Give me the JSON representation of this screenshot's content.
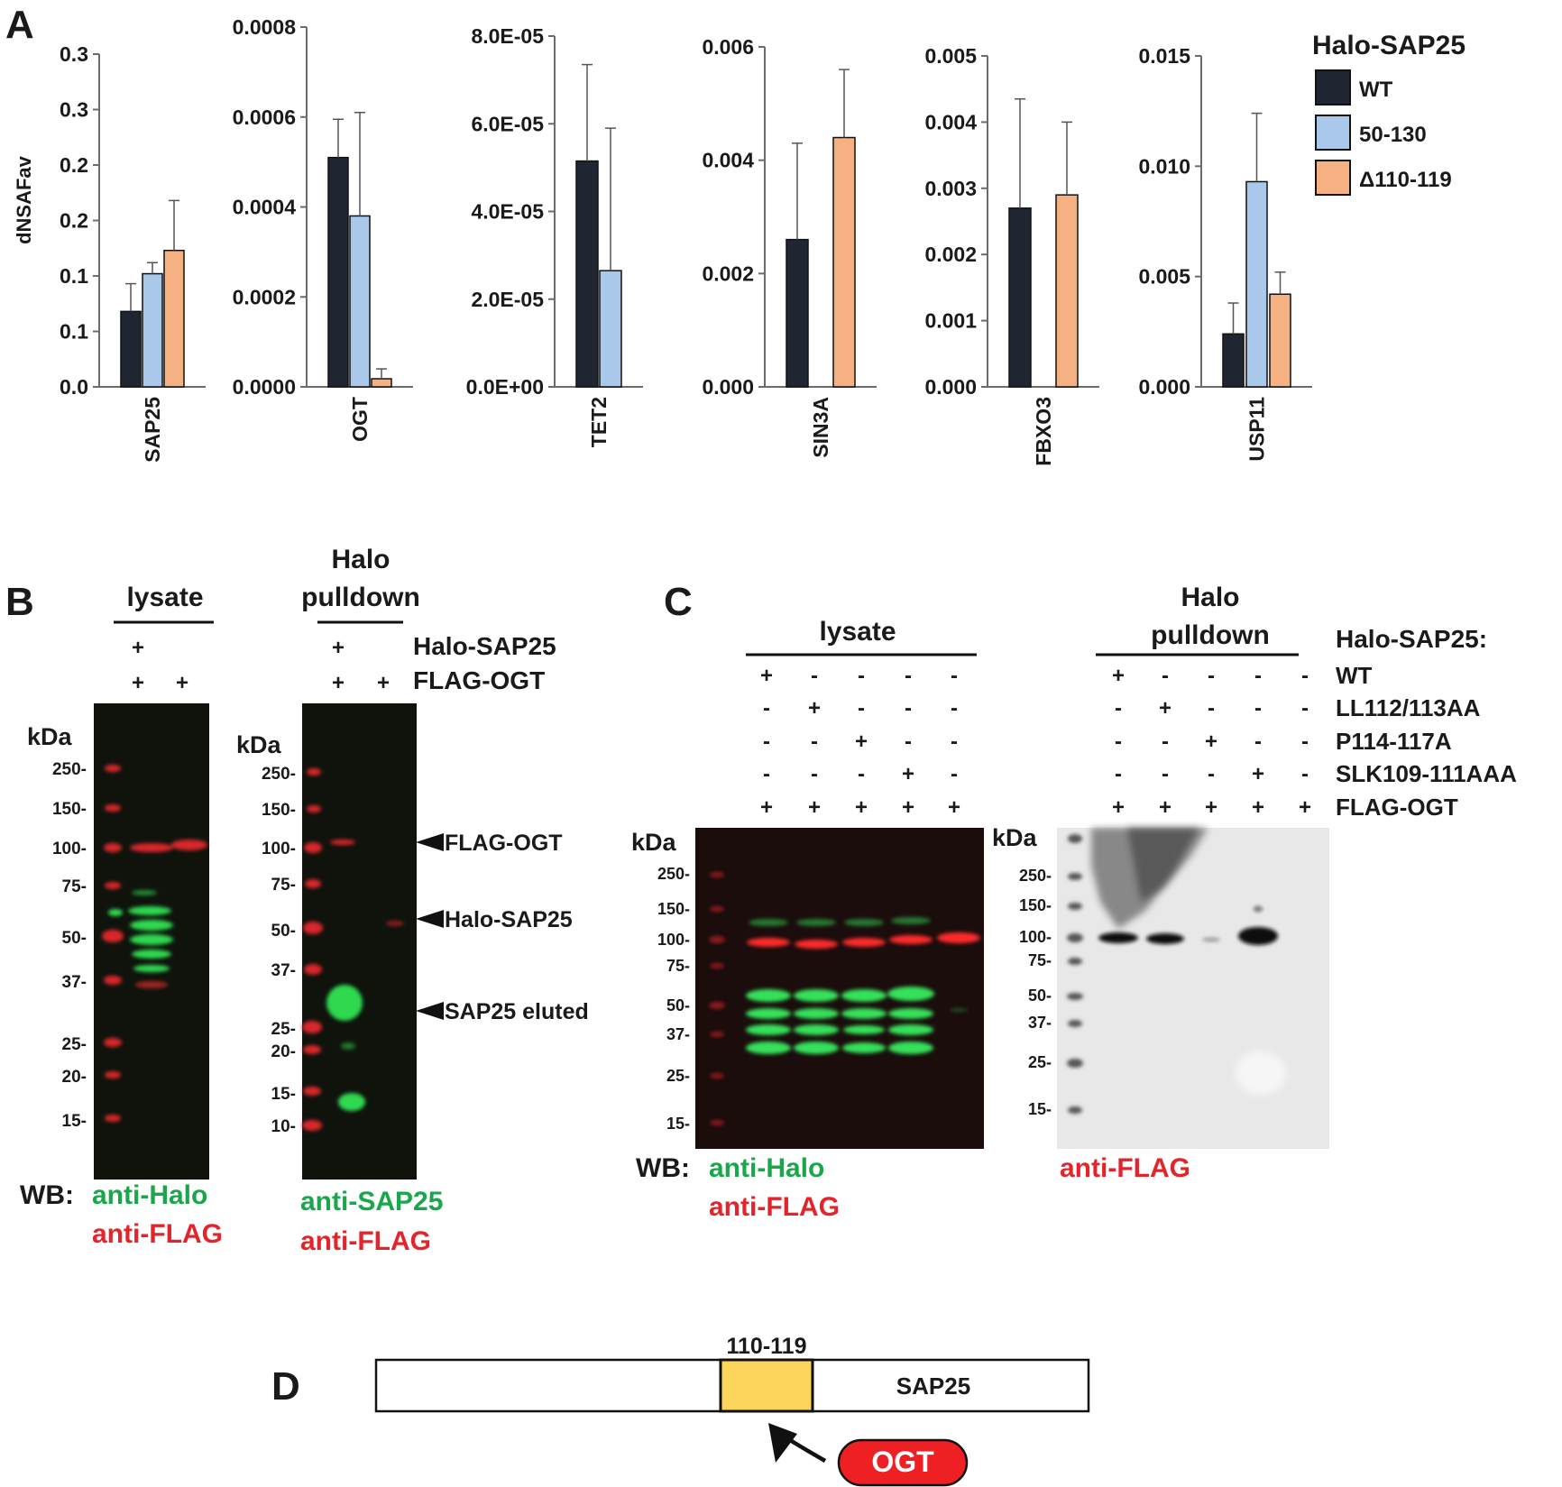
{
  "panels": {
    "A": {
      "letter": "A",
      "ylabel": "dNSAFav",
      "legend": {
        "title": "Halo-SAP25",
        "entries": [
          {
            "name": "WT",
            "color": "#1f2632"
          },
          {
            "name": "50-130",
            "color": "#a9c8ea"
          },
          {
            "name": "Δ110-119",
            "color": "#f5b182"
          }
        ]
      }
    },
    "B": {
      "letter": "B",
      "lysate_label": "lysate",
      "pulldown_label_line1": "Halo",
      "pulldown_label_line2": "pulldown",
      "row_halo": "Halo-SAP25",
      "row_flag": "FLAG-OGT",
      "lysate_halo_signs": [
        "+",
        ""
      ],
      "lysate_flag_signs": [
        "+",
        "+"
      ],
      "pulldown_halo_signs": [
        "+",
        ""
      ],
      "pulldown_flag_signs": [
        "+",
        "+"
      ],
      "kda": "kDa",
      "lysate_markers": [
        "250-",
        "150-",
        "100-",
        "75-",
        "50-",
        "37-",
        "25-",
        "20-",
        "15-"
      ],
      "pulldown_markers": [
        "250-",
        "150-",
        "100-",
        "75-",
        "50-",
        "37-",
        "25-",
        "20-",
        "15-",
        "10-"
      ],
      "arrows": [
        "FLAG-OGT",
        "Halo-SAP25",
        "SAP25 eluted"
      ],
      "wb_prefix": "WB:",
      "lysate_wb_green": "anti-Halo",
      "lysate_wb_red": "anti-FLAG",
      "pulldown_wb_green": "anti-SAP25",
      "pulldown_wb_red": "anti-FLAG"
    },
    "C": {
      "letter": "C",
      "lysate_label": "lysate",
      "pulldown_label_line1": "Halo",
      "pulldown_label_line2": "pulldown",
      "halo_header": "Halo-SAP25:",
      "rows": [
        {
          "name": "WT",
          "signs": [
            "+",
            "-",
            "-",
            "-",
            "-"
          ]
        },
        {
          "name": "LL112/113AA",
          "signs": [
            "-",
            "+",
            "-",
            "-",
            "-"
          ]
        },
        {
          "name": "P114-117A",
          "signs": [
            "-",
            "-",
            "+",
            "-",
            "-"
          ]
        },
        {
          "name": "SLK109-111AAA",
          "signs": [
            "-",
            "-",
            "-",
            "+",
            "-"
          ]
        },
        {
          "name": "FLAG-OGT",
          "signs": [
            "+",
            "+",
            "+",
            "+",
            "+"
          ]
        }
      ],
      "kda": "kDa",
      "lysate_markers": [
        "250-",
        "150-",
        "100-",
        "75-",
        "50-",
        "37-",
        "25-",
        "15-"
      ],
      "pulldown_markers": [
        "250-",
        "150-",
        "100-",
        "75-",
        "50-",
        "37-",
        "25-",
        "15-"
      ],
      "wb_prefix": "WB:",
      "lysate_wb_green": "anti-Halo",
      "lysate_wb_red": "anti-FLAG",
      "pulldown_wb_red": "anti-FLAG"
    },
    "D": {
      "letter": "D",
      "region_label": "110-119",
      "protein_label": "SAP25",
      "partner_label": "OGT"
    }
  },
  "chart_data": [
    {
      "type": "bar",
      "category": "SAP25",
      "yticks": [
        "0.0",
        "0.1",
        "0.1",
        "0.2",
        "0.2",
        "0.3",
        "0.3"
      ],
      "ylim": [
        0,
        0.3
      ],
      "series": [
        {
          "name": "WT",
          "value": 0.068,
          "err": 0.025
        },
        {
          "name": "50-130",
          "value": 0.102,
          "err": 0.01
        },
        {
          "name": "Δ110-119",
          "value": 0.123,
          "err": 0.045
        }
      ]
    },
    {
      "type": "bar",
      "category": "OGT",
      "yticks": [
        "0.0000",
        "0.0002",
        "0.0004",
        "0.0006",
        "0.0008"
      ],
      "ylim": [
        0,
        0.0008
      ],
      "series": [
        {
          "name": "WT",
          "value": 0.00051,
          "err": 8.5e-05
        },
        {
          "name": "50-130",
          "value": 0.00038,
          "err": 0.00023
        },
        {
          "name": "Δ110-119",
          "value": 1.8e-05,
          "err": 2.2e-05
        }
      ]
    },
    {
      "type": "bar",
      "category": "TET2",
      "yticks": [
        "0.0E+00",
        "2.0E-05",
        "4.0E-05",
        "6.0E-05",
        "8.0E-05"
      ],
      "ylim": [
        0,
        8e-05
      ],
      "series": [
        {
          "name": "WT",
          "value": 5.15e-05,
          "err": 2.2e-05
        },
        {
          "name": "50-130",
          "value": 2.65e-05,
          "err": 3.25e-05
        }
      ]
    },
    {
      "type": "bar",
      "category": "SIN3A",
      "yticks": [
        "0.000",
        "0.002",
        "0.004",
        "0.006"
      ],
      "ylim": [
        0,
        0.006
      ],
      "series": [
        {
          "name": "WT",
          "value": 0.0026,
          "err": 0.0017
        },
        {
          "name": "Δ110-119",
          "value": 0.0044,
          "err": 0.0012
        }
      ]
    },
    {
      "type": "bar",
      "category": "FBXO3",
      "yticks": [
        "0.000",
        "0.001",
        "0.002",
        "0.003",
        "0.004",
        "0.005"
      ],
      "ylim": [
        0,
        0.005
      ],
      "series": [
        {
          "name": "WT",
          "value": 0.0027,
          "err": 0.00165
        },
        {
          "name": "Δ110-119",
          "value": 0.0029,
          "err": 0.0011
        }
      ]
    },
    {
      "type": "bar",
      "category": "USP11",
      "yticks": [
        "0.000",
        "0.005",
        "0.010",
        "0.015"
      ],
      "ylim": [
        0,
        0.015
      ],
      "series": [
        {
          "name": "WT",
          "value": 0.0024,
          "err": 0.0014
        },
        {
          "name": "50-130",
          "value": 0.0093,
          "err": 0.0031
        },
        {
          "name": "Δ110-119",
          "value": 0.0042,
          "err": 0.001
        }
      ]
    }
  ]
}
